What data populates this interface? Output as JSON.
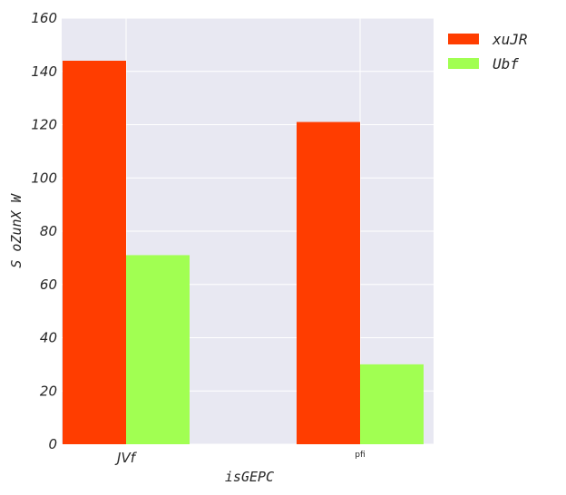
{
  "chart_data": {
    "type": "bar",
    "categories": [
      "JVf",
      "pfi"
    ],
    "series": [
      {
        "name": "xuJR",
        "values": [
          144,
          121
        ],
        "color": "#ff3d00"
      },
      {
        "name": "Ubf",
        "values": [
          71,
          30
        ],
        "color": "#a1ff52"
      }
    ],
    "xlabel": "isGEPC",
    "ylabel": "S oZunX W",
    "ylim": [
      0,
      160
    ],
    "yticks": [
      0,
      20,
      40,
      60,
      80,
      100,
      120,
      140,
      160
    ],
    "grid": true,
    "background": "#e8e8f2",
    "legend_position": "right"
  }
}
